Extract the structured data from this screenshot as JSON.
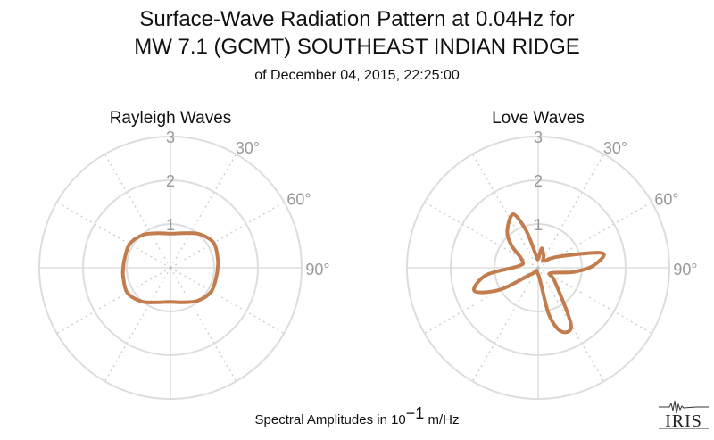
{
  "titles": {
    "line1": "Surface-Wave Radiation Pattern at 0.04Hz for",
    "line2": "MW 7.1 (GCMT) SOUTHEAST INDIAN RIDGE",
    "line3": "of December 04, 2015, 22:25:00"
  },
  "footer": {
    "prefix": "Spectral Amplitudes in 10",
    "exponent": "−1",
    "suffix": " m/Hz"
  },
  "logo": {
    "text": "IRIS"
  },
  "colors": {
    "curve": "#c27c4e",
    "grid": "#dddddd",
    "tick_text": "#999999"
  },
  "chart_data": [
    {
      "type": "polar-line",
      "title": "Rayleigh Waves",
      "radial_ticks": [
        "1",
        "2",
        "3"
      ],
      "angle_ticks": [
        "30°",
        "60°",
        "90°"
      ],
      "rlim": [
        0,
        3
      ],
      "grid": true,
      "series": [
        {
          "points": [
            {
              "angle": 0,
              "r": 0.78
            },
            {
              "angle": 20,
              "r": 0.84
            },
            {
              "angle": 40,
              "r": 1.01
            },
            {
              "angle": 60,
              "r": 1.14
            },
            {
              "angle": 80,
              "r": 1.1
            },
            {
              "angle": 90,
              "r": 1.08
            },
            {
              "angle": 100,
              "r": 1.07
            },
            {
              "angle": 120,
              "r": 1.08
            },
            {
              "angle": 140,
              "r": 0.98
            },
            {
              "angle": 160,
              "r": 0.84
            },
            {
              "angle": 180,
              "r": 0.78
            },
            {
              "angle": 200,
              "r": 0.84
            },
            {
              "angle": 220,
              "r": 1.01
            },
            {
              "angle": 240,
              "r": 1.14
            },
            {
              "angle": 260,
              "r": 1.1
            },
            {
              "angle": 270,
              "r": 1.08
            },
            {
              "angle": 280,
              "r": 1.07
            },
            {
              "angle": 300,
              "r": 1.08
            },
            {
              "angle": 320,
              "r": 0.98
            },
            {
              "angle": 340,
              "r": 0.84
            },
            {
              "angle": 360,
              "r": 0.78
            }
          ]
        }
      ]
    },
    {
      "type": "polar-line",
      "title": "Love Waves",
      "radial_ticks": [
        "1",
        "2",
        "3"
      ],
      "angle_ticks": [
        "30°",
        "60°",
        "90°"
      ],
      "rlim": [
        0,
        3
      ],
      "grid": true,
      "series": [
        {
          "points": [
            {
              "angle": 0,
              "r": 0.2
            },
            {
              "angle": 10,
              "r": 0.45
            },
            {
              "angle": 25,
              "r": 0.3
            },
            {
              "angle": 40,
              "r": 0.2
            },
            {
              "angle": 60,
              "r": 0.5
            },
            {
              "angle": 77,
              "r": 1.5
            },
            {
              "angle": 88,
              "r": 1.25
            },
            {
              "angle": 97,
              "r": 0.8
            },
            {
              "angle": 115,
              "r": 0.3
            },
            {
              "angle": 130,
              "r": 0.5
            },
            {
              "angle": 150,
              "r": 1.5
            },
            {
              "angle": 160,
              "r": 1.55
            },
            {
              "angle": 167,
              "r": 1.1
            },
            {
              "angle": 180,
              "r": 0.15
            },
            {
              "angle": 225,
              "r": 0.2
            },
            {
              "angle": 240,
              "r": 1.0
            },
            {
              "angle": 250,
              "r": 1.55
            },
            {
              "angle": 262,
              "r": 1.2
            },
            {
              "angle": 275,
              "r": 0.45
            },
            {
              "angle": 295,
              "r": 0.4
            },
            {
              "angle": 310,
              "r": 0.8
            },
            {
              "angle": 320,
              "r": 1.1
            },
            {
              "angle": 335,
              "r": 1.35
            },
            {
              "angle": 342,
              "r": 0.9
            },
            {
              "angle": 350,
              "r": 0.3
            },
            {
              "angle": 360,
              "r": 0.2
            }
          ]
        }
      ]
    }
  ]
}
